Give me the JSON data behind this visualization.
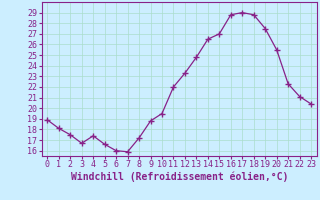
{
  "x": [
    0,
    1,
    2,
    3,
    4,
    5,
    6,
    7,
    8,
    9,
    10,
    11,
    12,
    13,
    14,
    15,
    16,
    17,
    18,
    19,
    20,
    21,
    22,
    23
  ],
  "y": [
    18.9,
    18.1,
    17.5,
    16.7,
    17.4,
    16.6,
    16.0,
    15.9,
    17.2,
    18.8,
    19.5,
    22.0,
    23.3,
    24.8,
    26.5,
    27.0,
    28.8,
    29.0,
    28.8,
    27.5,
    25.5,
    22.3,
    21.1,
    20.4
  ],
  "line_color": "#882288",
  "marker": "+",
  "marker_size": 4,
  "bg_color": "#cceeff",
  "grid_color": "#aaddcc",
  "xlabel": "Windchill (Refroidissement éolien,°C)",
  "xlabel_color": "#882288",
  "tick_color": "#882288",
  "ylim": [
    15.5,
    30.0
  ],
  "xlim": [
    -0.5,
    23.5
  ],
  "yticks": [
    16,
    17,
    18,
    19,
    20,
    21,
    22,
    23,
    24,
    25,
    26,
    27,
    28,
    29
  ],
  "xticks": [
    0,
    1,
    2,
    3,
    4,
    5,
    6,
    7,
    8,
    9,
    10,
    11,
    12,
    13,
    14,
    15,
    16,
    17,
    18,
    19,
    20,
    21,
    22,
    23
  ],
  "xtick_labels": [
    "0",
    "1",
    "2",
    "3",
    "4",
    "5",
    "6",
    "7",
    "8",
    "9",
    "10",
    "11",
    "12",
    "13",
    "14",
    "15",
    "16",
    "17",
    "18",
    "19",
    "20",
    "21",
    "22",
    "23"
  ],
  "ytick_labels": [
    "16",
    "17",
    "18",
    "19",
    "20",
    "21",
    "22",
    "23",
    "24",
    "25",
    "26",
    "27",
    "28",
    "29"
  ],
  "font_size": 6,
  "xlabel_fontsize": 7,
  "spine_color": "#882288"
}
